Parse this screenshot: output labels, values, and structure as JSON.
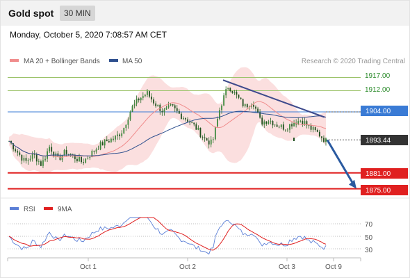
{
  "header": {
    "instrument": "Gold spot",
    "timeframe": "30 MIN",
    "datetime": "Monday, October 5, 2020 7:08:57 AM CET"
  },
  "legend": {
    "main": [
      {
        "label": "MA 20 + Bollinger Bands",
        "color": "#f08c8c"
      },
      {
        "label": "MA 50",
        "color": "#2d4f8e"
      }
    ],
    "indicator": [
      {
        "label": "RSI",
        "color": "#5b7fd6"
      },
      {
        "label": "9MA",
        "color": "#e02020"
      }
    ],
    "credit": "Research © 2020 Trading Central"
  },
  "levels": {
    "r2": {
      "value": "1917.00",
      "color": "#9cc36a"
    },
    "r1": {
      "value": "1912.00",
      "color": "#9cc36a"
    },
    "pivot": {
      "value": "1904.00",
      "color": "#3a7bd5"
    },
    "last": {
      "value": "1893.44",
      "color": "#333333"
    },
    "s1": {
      "value": "1881.00",
      "color": "#e02020"
    },
    "s2": {
      "value": "1875.00",
      "color": "#e02020"
    }
  },
  "xaxis": {
    "labels": [
      "Oct 1",
      "Oct 2",
      "Oct 3",
      "Oct 9"
    ]
  },
  "chart_data": {
    "type": "candlestick",
    "title": "Gold spot",
    "timeframe": "30 MIN",
    "ylim": [
      1872,
      1920
    ],
    "price_series": {
      "name": "Gold spot",
      "x_ticks": [
        "Oct 1",
        "Oct 2",
        "Oct 3",
        "Oct 9"
      ],
      "approx_path": [
        1893,
        1889,
        1885,
        1888,
        1884,
        1891,
        1886,
        1889,
        1887,
        1885,
        1888,
        1891,
        1893,
        1894,
        1897,
        1905,
        1909,
        1911,
        1907,
        1904,
        1906,
        1903,
        1901,
        1898,
        1894,
        1892,
        1906,
        1914,
        1910,
        1906,
        1908,
        1900,
        1901,
        1899,
        1898,
        1900,
        1901,
        1898,
        1896,
        1893
      ]
    },
    "horizontal_levels": [
      {
        "name": "resistance",
        "value": 1917.0
      },
      {
        "name": "resistance",
        "value": 1912.0
      },
      {
        "name": "pivot",
        "value": 1904.0
      },
      {
        "name": "last",
        "value": 1893.44
      },
      {
        "name": "support",
        "value": 1881.0
      },
      {
        "name": "support",
        "value": 1875.0
      }
    ],
    "overlays": [
      "MA 20 + Bollinger Bands",
      "MA 50"
    ],
    "indicator": {
      "name": "RSI",
      "signal": "9MA",
      "ylim": [
        20,
        80
      ],
      "ticks": [
        70,
        50,
        30
      ]
    }
  }
}
